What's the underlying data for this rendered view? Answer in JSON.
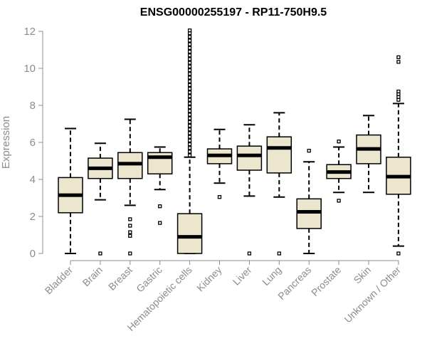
{
  "chart_data": {
    "type": "boxplot",
    "title": "ENSG00000255197 - RP11-750H9.5",
    "xlabel": "",
    "ylabel": "Expression",
    "ylim": [
      0,
      12
    ],
    "yticks": [
      0,
      2,
      4,
      6,
      8,
      10,
      12
    ],
    "grid": false,
    "legend": "none",
    "box_fill": "#ece6cf",
    "box_stroke": "#000000",
    "axis_color": "#8c8c8c",
    "categories": [
      "Bladder",
      "Brain",
      "Breast",
      "Gastric",
      "Hematopoietic cells",
      "Kidney",
      "Liver",
      "Lung",
      "Pancreas",
      "Prostate",
      "Skin",
      "Unknown / Other"
    ],
    "boxes": [
      {
        "category": "Bladder",
        "whisker_low": 0.0,
        "q1": 2.2,
        "median": 3.15,
        "q3": 4.1,
        "whisker_high": 6.75,
        "outliers": []
      },
      {
        "category": "Brain",
        "whisker_low": 2.9,
        "q1": 4.05,
        "median": 4.6,
        "q3": 5.15,
        "whisker_high": 5.95,
        "outliers": [
          0.0
        ]
      },
      {
        "category": "Breast",
        "whisker_low": 2.6,
        "q1": 4.05,
        "median": 4.85,
        "q3": 5.45,
        "whisker_high": 7.25,
        "outliers": [
          0.0,
          0.95,
          1.15,
          1.5,
          1.85
        ]
      },
      {
        "category": "Gastric",
        "whisker_low": 3.45,
        "q1": 4.3,
        "median": 5.2,
        "q3": 5.45,
        "whisker_high": 5.75,
        "outliers": [
          1.65,
          2.55
        ]
      },
      {
        "category": "Hematopoietic cells",
        "whisker_low": 0.0,
        "q1": 0.0,
        "median": 0.9,
        "q3": 2.15,
        "whisker_high": 5.2,
        "outliers": [
          5.3,
          5.5,
          5.7,
          5.9,
          6.1,
          6.3,
          6.5,
          6.7,
          6.9,
          7.1,
          7.3,
          7.5,
          7.7,
          7.9,
          8.1,
          8.3,
          8.5,
          8.7,
          8.9,
          9.1,
          9.3,
          9.5,
          9.7,
          9.9,
          10.1,
          10.3,
          10.5,
          10.7,
          10.9,
          11.1,
          11.3,
          11.5,
          11.7,
          11.9,
          12.05
        ]
      },
      {
        "category": "Kidney",
        "whisker_low": 3.8,
        "q1": 4.85,
        "median": 5.3,
        "q3": 5.65,
        "whisker_high": 6.7,
        "outliers": [
          3.05
        ]
      },
      {
        "category": "Liver",
        "whisker_low": 3.1,
        "q1": 4.5,
        "median": 5.3,
        "q3": 5.8,
        "whisker_high": 6.95,
        "outliers": [
          0.0
        ]
      },
      {
        "category": "Lung",
        "whisker_low": 3.05,
        "q1": 4.35,
        "median": 5.7,
        "q3": 6.3,
        "whisker_high": 7.6,
        "outliers": [
          0.0
        ]
      },
      {
        "category": "Pancreas",
        "whisker_low": 0.0,
        "q1": 1.35,
        "median": 2.25,
        "q3": 2.95,
        "whisker_high": 4.95,
        "outliers": [
          5.55
        ]
      },
      {
        "category": "Prostate",
        "whisker_low": 3.3,
        "q1": 4.05,
        "median": 4.4,
        "q3": 4.8,
        "whisker_high": 5.75,
        "outliers": [
          2.85,
          6.05
        ]
      },
      {
        "category": "Skin",
        "whisker_low": 3.3,
        "q1": 4.85,
        "median": 5.65,
        "q3": 6.4,
        "whisker_high": 7.45,
        "outliers": []
      },
      {
        "category": "Unknown / Other",
        "whisker_low": 0.4,
        "q1": 3.2,
        "median": 4.15,
        "q3": 5.2,
        "whisker_high": 8.1,
        "outliers": [
          0.0,
          8.3,
          8.45,
          8.6,
          8.75,
          10.35,
          10.6
        ]
      }
    ]
  }
}
